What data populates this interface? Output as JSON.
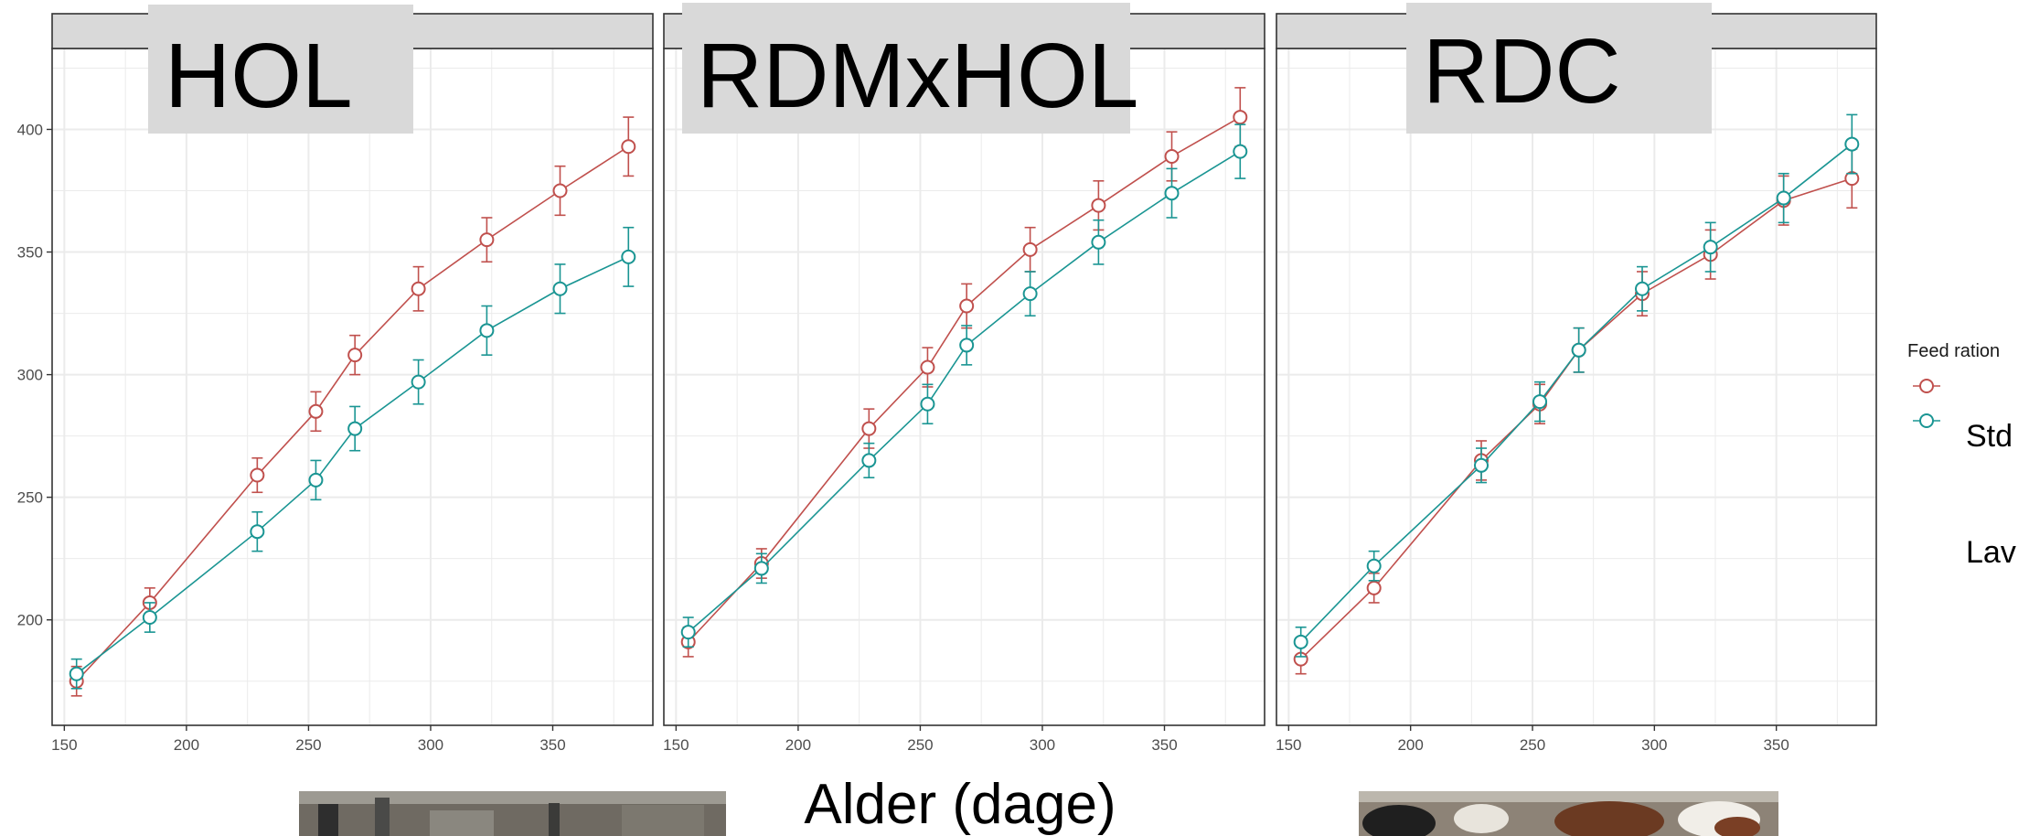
{
  "chart_data": {
    "type": "line",
    "facets": [
      "HOL",
      "RDMxHOL",
      "RDC"
    ],
    "xlabel": "Alder (dage)",
    "ylabel": "",
    "x": [
      155,
      185,
      229,
      253,
      269,
      295,
      323,
      353,
      381
    ],
    "xlim": [
      145,
      391
    ],
    "ylim": [
      157,
      433
    ],
    "xticks": [
      150,
      200,
      250,
      300,
      350
    ],
    "yticks": [
      200,
      250,
      300,
      350,
      400
    ],
    "grid": true,
    "legend": {
      "title": "Feed ration",
      "position": "right",
      "entries": [
        {
          "name": "Std",
          "color": "#c0504d"
        },
        {
          "name": "Lav",
          "color": "#1a9593"
        }
      ]
    },
    "panels": [
      {
        "facet": "HOL",
        "series": [
          {
            "name": "Std",
            "values": [
              175,
              207,
              259,
              285,
              308,
              335,
              355,
              375,
              393
            ],
            "errors": [
              6,
              6,
              7,
              8,
              8,
              9,
              9,
              10,
              12
            ]
          },
          {
            "name": "Lav",
            "values": [
              178,
              201,
              236,
              257,
              278,
              297,
              318,
              335,
              348
            ],
            "errors": [
              6,
              6,
              8,
              8,
              9,
              9,
              10,
              10,
              12
            ]
          }
        ]
      },
      {
        "facet": "RDMxHOL",
        "series": [
          {
            "name": "Std",
            "values": [
              191,
              223,
              278,
              303,
              328,
              351,
              369,
              389,
              405
            ],
            "errors": [
              6,
              6,
              8,
              8,
              9,
              9,
              10,
              10,
              12
            ]
          },
          {
            "name": "Lav",
            "values": [
              195,
              221,
              265,
              288,
              312,
              333,
              354,
              374,
              391
            ],
            "errors": [
              6,
              6,
              7,
              8,
              8,
              9,
              9,
              10,
              11
            ]
          }
        ]
      },
      {
        "facet": "RDC",
        "series": [
          {
            "name": "Std",
            "values": [
              184,
              213,
              265,
              288,
              310,
              333,
              349,
              371,
              380
            ],
            "errors": [
              6,
              6,
              8,
              8,
              9,
              9,
              10,
              10,
              12
            ]
          },
          {
            "name": "Lav",
            "values": [
              191,
              222,
              263,
              289,
              310,
              335,
              352,
              372,
              394
            ],
            "errors": [
              6,
              6,
              7,
              8,
              9,
              9,
              10,
              10,
              12
            ]
          }
        ]
      }
    ]
  },
  "colors": {
    "std": "#c0504d",
    "lav": "#1a9593",
    "strip_bg": "#d9d9d9",
    "grid": "#ebebeb",
    "panel_border": "#333333"
  }
}
